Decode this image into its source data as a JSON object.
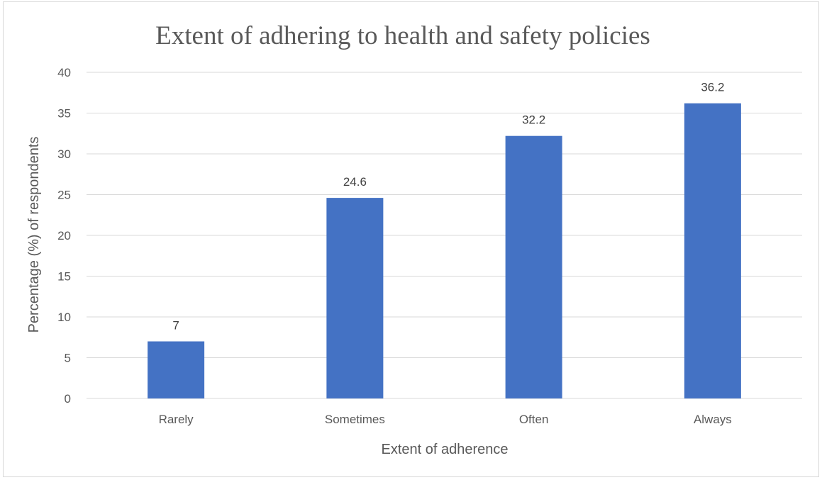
{
  "chart_data": {
    "type": "bar",
    "title": "Extent of adhering to health and safety policies",
    "xlabel": "Extent of adherence",
    "ylabel": "Percentage (%) of respondents",
    "categories": [
      "Rarely",
      "Sometimes",
      "Often",
      "Always"
    ],
    "values": [
      7,
      24.6,
      32.2,
      36.2
    ],
    "data_labels": [
      "7",
      "24.6",
      "32.2",
      "36.2"
    ],
    "ylim": [
      0,
      40
    ],
    "yticks": [
      0,
      5,
      10,
      15,
      20,
      25,
      30,
      35,
      40
    ],
    "grid": true,
    "legend": "none",
    "bar_color": "#4472c4"
  }
}
